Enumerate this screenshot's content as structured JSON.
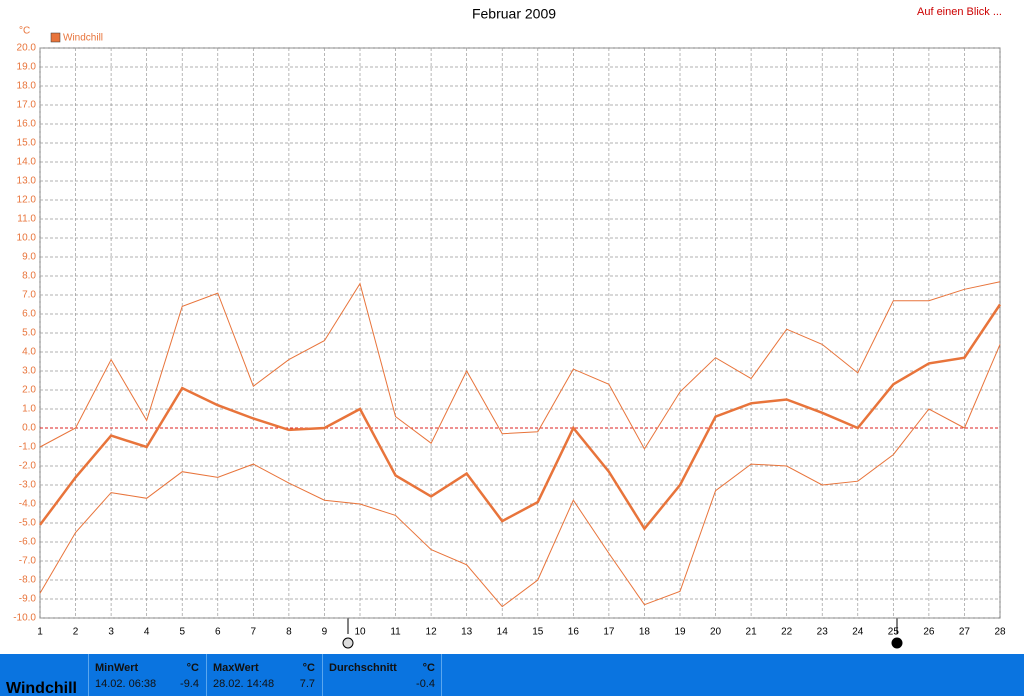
{
  "chart_data": {
    "type": "line",
    "title": "Februar 2009",
    "link": "Auf einen Blick ...",
    "y_unit": "°C",
    "x": [
      1,
      2,
      3,
      4,
      5,
      6,
      7,
      8,
      9,
      10,
      11,
      12,
      13,
      14,
      15,
      16,
      17,
      18,
      19,
      20,
      21,
      22,
      23,
      24,
      25,
      26,
      27,
      28
    ],
    "xlim": [
      1,
      28
    ],
    "xticks": [
      1,
      2,
      3,
      4,
      5,
      6,
      7,
      8,
      9,
      10,
      11,
      12,
      13,
      14,
      15,
      16,
      17,
      18,
      19,
      20,
      21,
      22,
      23,
      24,
      25,
      26,
      27,
      28
    ],
    "ylim": [
      -10,
      20
    ],
    "yticks": [
      {
        "value": -10,
        "label": "-10.0"
      },
      {
        "value": -9,
        "label": "-9.0"
      },
      {
        "value": -8,
        "label": "-8.0"
      },
      {
        "value": -7,
        "label": "-7.0"
      },
      {
        "value": -6,
        "label": "-6.0"
      },
      {
        "value": -5,
        "label": "-5.0"
      },
      {
        "value": -4,
        "label": "-4.0"
      },
      {
        "value": -3,
        "label": "-3.0"
      },
      {
        "value": -2,
        "label": "-2.0"
      },
      {
        "value": -1,
        "label": "-1.0"
      },
      {
        "value": 0,
        "label": "0.0"
      },
      {
        "value": 1,
        "label": "1.0"
      },
      {
        "value": 2,
        "label": "2.0"
      },
      {
        "value": 3,
        "label": "3.0"
      },
      {
        "value": 4,
        "label": "4.0"
      },
      {
        "value": 5,
        "label": "5.0"
      },
      {
        "value": 6,
        "label": "6.0"
      },
      {
        "value": 7,
        "label": "7.0"
      },
      {
        "value": 8,
        "label": "8.0"
      },
      {
        "value": 9,
        "label": "9.0"
      },
      {
        "value": 10,
        "label": "10.0"
      },
      {
        "value": 11,
        "label": "11.0"
      },
      {
        "value": 12,
        "label": "12.0"
      },
      {
        "value": 13,
        "label": "13.0"
      },
      {
        "value": 14,
        "label": "14.0"
      },
      {
        "value": 15,
        "label": "15.0"
      },
      {
        "value": 16,
        "label": "16.0"
      },
      {
        "value": 17,
        "label": "17.0"
      },
      {
        "value": 18,
        "label": "18.0"
      },
      {
        "value": 19,
        "label": "19.0"
      },
      {
        "value": 20,
        "label": "20.0"
      }
    ],
    "grid": true,
    "series": [
      {
        "name": "Windchill",
        "color": "#e8743b",
        "values": [
          -5.1,
          -2.6,
          -0.4,
          -1.0,
          2.1,
          1.2,
          0.5,
          -0.1,
          0.0,
          1.0,
          -2.5,
          -3.6,
          -2.4,
          -4.9,
          -3.9,
          0.0,
          -2.3,
          -5.3,
          -3.0,
          0.6,
          1.3,
          1.5,
          0.8,
          0.0,
          2.3,
          3.4,
          3.7,
          6.5
        ]
      },
      {
        "color": "#e8743b",
        "values": [
          -1.0,
          0.0,
          3.6,
          0.4,
          6.4,
          7.1,
          2.2,
          3.6,
          4.6,
          7.6,
          0.6,
          -0.8,
          3.0,
          -0.3,
          -0.2,
          3.1,
          2.3,
          -1.1,
          1.9,
          3.7,
          2.6,
          5.2,
          4.4,
          2.9,
          6.7,
          6.7,
          7.3,
          7.7
        ]
      },
      {
        "color": "#e8743b",
        "values": [
          -8.7,
          -5.5,
          -3.4,
          -3.7,
          -2.3,
          -2.6,
          -1.9,
          -2.9,
          -3.8,
          -4.0,
          -4.6,
          -6.4,
          -7.2,
          -9.4,
          -8.0,
          -3.8,
          -6.6,
          -9.3,
          -8.6,
          -3.3,
          -1.9,
          -2.0,
          -3.0,
          -2.8,
          -1.4,
          1.0,
          0.0,
          4.4
        ]
      }
    ]
  },
  "summary": {
    "label": "Windchill",
    "cells": [
      {
        "title": "MinWert",
        "unit": "°C",
        "time": "14.02. 06:38",
        "value": -9.4
      },
      {
        "title": "MaxWert",
        "unit": "°C",
        "time": "28.02. 14:48",
        "value": 7.7
      },
      {
        "title": "Durchschnitt",
        "unit": "°C",
        "value": -0.4
      }
    ]
  }
}
